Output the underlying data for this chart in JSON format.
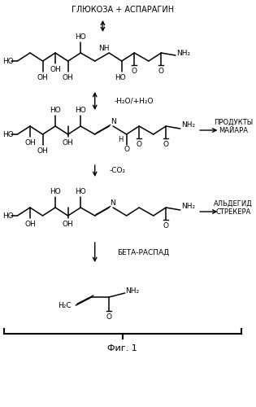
{
  "background_color": "#ffffff",
  "labels": {
    "top_label": "ГЛЮКОЗА + АСПАРАГИН",
    "maillard_label": "ПРОДУКТЫ\nМАЙАРА",
    "strecker_label": "АЛЬДЕГИД\nСТРЕКЕРА",
    "beta_label": "БЕТА-РАСПАД",
    "fig_label": "Фиг. 1",
    "h2o_label": "-H₂O/+H₂O",
    "co2_label": "-CO₂"
  },
  "fig_width": 3.15,
  "fig_height": 5.0,
  "dpi": 100
}
